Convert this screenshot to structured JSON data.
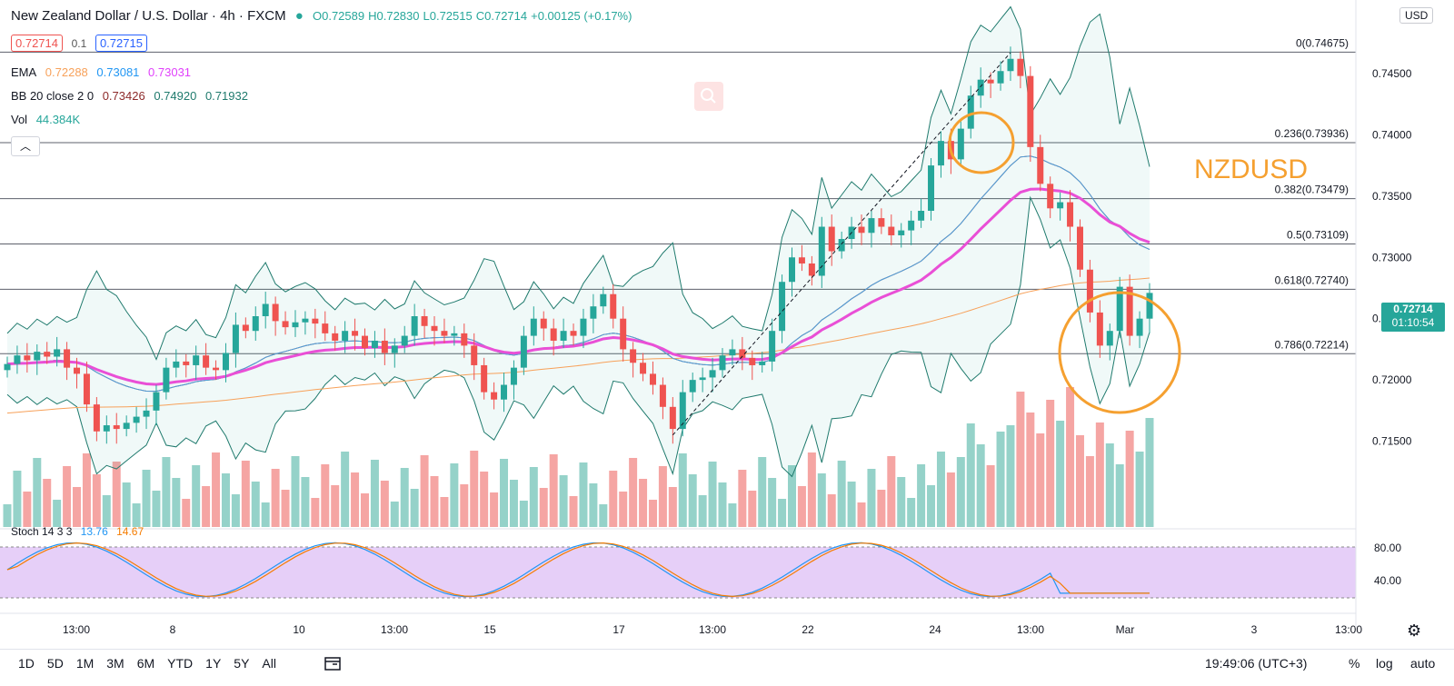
{
  "header": {
    "symbol": "New Zealand Dollar / U.S. Dollar · 4h · FXCM",
    "open": "O0.72589",
    "high": "H0.72830",
    "low": "L0.72515",
    "close": "C0.72714",
    "change": "+0.00125 (+0.17%)",
    "bid": "0.72714",
    "spread": "0.1",
    "ask": "0.72715",
    "ema_label": "EMA",
    "ema_vals": [
      "0.72288",
      "0.73081",
      "0.73031"
    ],
    "bb_label": "BB 20 close 2 0",
    "bb_vals": [
      "0.73426",
      "0.74920",
      "0.71932"
    ],
    "vol_label": "Vol",
    "vol_val": "44.384K",
    "stoch_label": "Stoch 14 3 3",
    "stoch_k": "13.76",
    "stoch_d": "14.67"
  },
  "currency_button": "USD",
  "annotation_text": "NZDUSD",
  "colors": {
    "up": "#26a69a",
    "down": "#ef5350",
    "ema_fast": "#f7a15a",
    "ema_mid": "#4da3e0",
    "ema_slow": "#e94fd6",
    "bb": "#1f7a6d",
    "circle": "#f5a030",
    "stoch_bg": "#e6cff8"
  },
  "chart_data": {
    "type": "candlestick",
    "y_ticks": [
      "0.74500",
      "0.74000",
      "0.73500",
      "0.73000",
      "0.72500",
      "0.72000",
      "0.71500"
    ],
    "y_range": [
      0.708,
      0.751
    ],
    "x_ticks": [
      "13:00",
      "8",
      "10",
      "13:00",
      "15",
      "17",
      "13:00",
      "22",
      "24",
      "13:00",
      "Mar",
      "3",
      "13:00"
    ],
    "fib_levels": [
      {
        "label": "0(0.74675)",
        "value": 0.74675
      },
      {
        "label": "0.236(0.73936)",
        "value": 0.73936
      },
      {
        "label": "0.382(0.73479)",
        "value": 0.73479
      },
      {
        "label": "0.5(0.73109)",
        "value": 0.73109
      },
      {
        "label": "0.618(0.72740)",
        "value": 0.7274
      },
      {
        "label": "0.786(0.72214)",
        "value": 0.72214
      }
    ],
    "last_price": "0.72714",
    "countdown": "01:10:54",
    "stoch_ticks": [
      "80.00",
      "40.00"
    ]
  },
  "bottom_bar": {
    "ranges": [
      "1D",
      "5D",
      "1M",
      "3M",
      "6M",
      "YTD",
      "1Y",
      "5Y",
      "All"
    ],
    "time": "19:49:06 (UTC+3)",
    "percent": "%",
    "log": "log",
    "auto": "auto"
  }
}
